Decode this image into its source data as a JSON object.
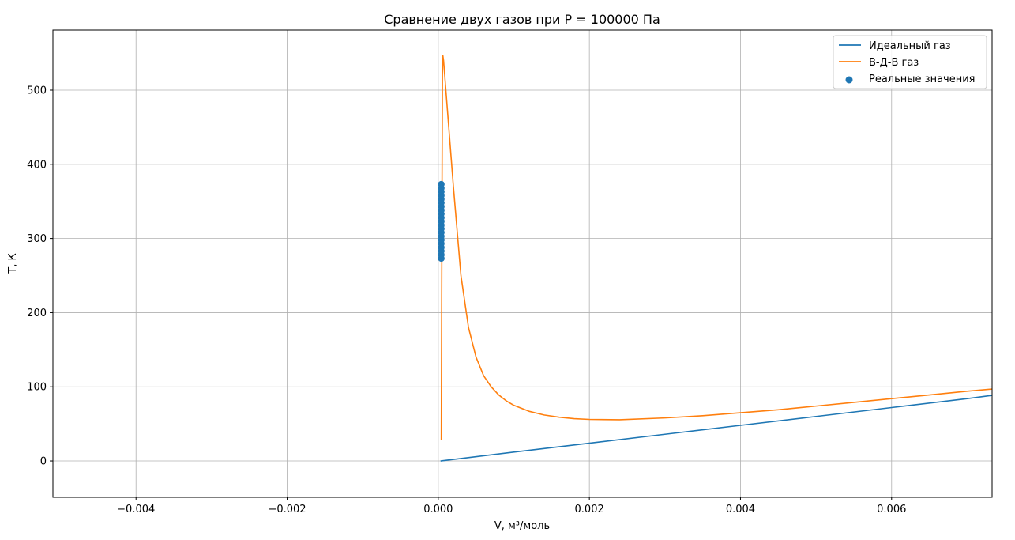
{
  "chart_data": {
    "type": "line",
    "title": "Сравнение двух газов при P = 100000 Па",
    "xlabel": "V, м³/моль",
    "ylabel": "T, К",
    "xlim": [
      -0.0051,
      0.00733
    ],
    "ylim": [
      -49,
      581
    ],
    "grid": true,
    "legend_position": "top-right",
    "x_ticks": [
      -0.004,
      -0.002,
      0.0,
      0.002,
      0.004,
      0.006
    ],
    "x_tick_labels": [
      "−0.004",
      "−0.002",
      "0.000",
      "0.002",
      "0.004",
      "0.006"
    ],
    "y_ticks": [
      0,
      100,
      200,
      300,
      400,
      500
    ],
    "y_tick_labels": [
      "0",
      "100",
      "200",
      "300",
      "400",
      "500"
    ],
    "series": [
      {
        "name": "Идеальный газ",
        "kind": "line",
        "color": "#1f77b4",
        "x": [
          3e-05,
          0.001,
          0.002,
          0.003,
          0.004,
          0.005,
          0.006,
          0.007,
          0.00733
        ],
        "y": [
          0,
          12,
          24,
          36,
          48,
          60,
          72,
          84,
          88.5
        ]
      },
      {
        "name": "В-Д-В газ",
        "kind": "line",
        "color": "#ff7f0e",
        "x": [
          4e-05,
          5e-05,
          5.5e-05,
          6e-05,
          7e-05,
          0.0002,
          0.0003,
          0.0004,
          0.0005,
          0.0006,
          0.0007,
          0.0008,
          0.0009,
          0.001,
          0.0012,
          0.0014,
          0.0016,
          0.0018,
          0.002,
          0.0024,
          0.003,
          0.0035,
          0.004,
          0.0045,
          0.005,
          0.0055,
          0.006,
          0.0065,
          0.007,
          0.00733
        ],
        "y": [
          28,
          380,
          520,
          547,
          540,
          370,
          250,
          180,
          140,
          115,
          100,
          89,
          81,
          75,
          67,
          62,
          59,
          57,
          56,
          55.5,
          58,
          61,
          65,
          69,
          74,
          79,
          84,
          89,
          94,
          97
        ]
      },
      {
        "name": "Реальные значения",
        "kind": "scatter",
        "color": "#1f77b4",
        "x": [
          4e-05,
          4e-05,
          4e-05,
          4e-05,
          4e-05,
          4e-05,
          4e-05,
          4e-05,
          4e-05,
          4e-05,
          4e-05,
          4e-05,
          4e-05,
          4e-05,
          4e-05,
          4e-05,
          4e-05,
          4e-05,
          4e-05,
          4e-05,
          4e-05
        ],
        "y": [
          273,
          278,
          283,
          288,
          293,
          298,
          303,
          308,
          313,
          318,
          323,
          328,
          333,
          338,
          343,
          348,
          353,
          358,
          363,
          368,
          373
        ]
      }
    ]
  }
}
